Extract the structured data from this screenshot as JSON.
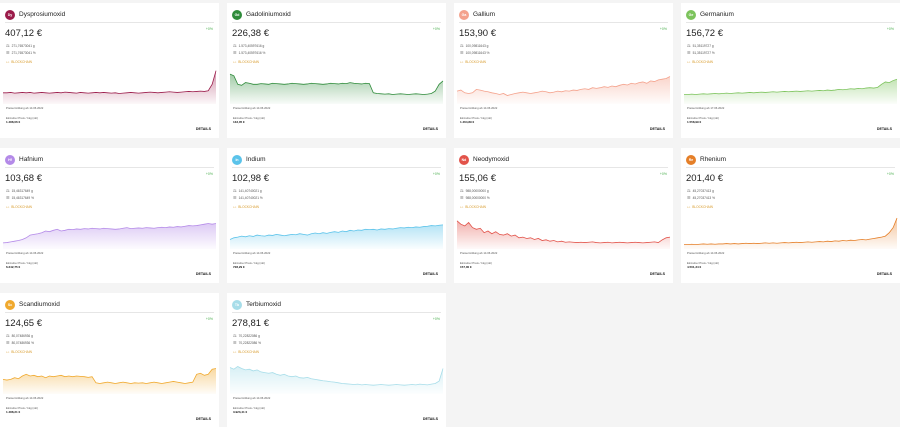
{
  "cards": [
    {
      "name": "Dysprosiumoxid",
      "badge": "Dy",
      "color": "#9b1b4a",
      "price": "407,12 €",
      "change": "+0%",
      "qty_g": "271,76573041 g",
      "qty_pct": "271,76573041 %",
      "chain": "BLOCKCHAIN",
      "note": "Preisermittlung ab 14.06.2022",
      "label": "Einzelner Preis / 1kg (xkt)",
      "total": "1.488,06 €",
      "details": "DETAILS",
      "series": [
        0.3,
        0.3,
        0.31,
        0.29,
        0.3,
        0.31,
        0.3,
        0.31,
        0.29,
        0.3,
        0.31,
        0.3,
        0.29,
        0.3,
        0.31,
        0.3,
        0.32,
        0.31,
        0.3,
        0.29,
        0.31,
        0.3,
        0.29,
        0.3,
        0.31,
        0.3,
        0.31,
        0.3,
        0.29,
        0.3,
        0.28,
        0.29,
        0.3,
        0.31,
        0.3,
        0.29,
        0.3,
        0.31,
        0.32,
        0.31,
        0.3,
        0.31,
        0.32,
        0.33,
        0.32,
        0.31,
        0.32,
        0.33,
        0.34,
        0.33,
        0.34,
        0.35,
        0.34,
        0.36,
        0.55,
        0.95
      ]
    },
    {
      "name": "Gadoliniumoxid",
      "badge": "Gd",
      "color": "#2e8b3a",
      "price": "226,38 €",
      "change": "+0%",
      "qty_g": "1.573,40597616 g",
      "qty_pct": "1.573,40597616 %",
      "chain": "BLOCKCHAIN",
      "note": "Preisermittlung ab 14.06.2022",
      "label": "Einzelner Preis / 1kg (xkt)",
      "total": "133,05 €",
      "details": "DETAILS",
      "series": [
        0.85,
        0.8,
        0.55,
        0.52,
        0.6,
        0.58,
        0.55,
        0.55,
        0.57,
        0.56,
        0.55,
        0.58,
        0.57,
        0.56,
        0.55,
        0.56,
        0.58,
        0.57,
        0.56,
        0.55,
        0.56,
        0.58,
        0.57,
        0.56,
        0.55,
        0.56,
        0.58,
        0.57,
        0.56,
        0.58,
        0.57,
        0.6,
        0.58,
        0.57,
        0.56,
        0.58,
        0.57,
        0.3,
        0.28,
        0.27,
        0.26,
        0.27,
        0.25,
        0.26,
        0.27,
        0.26,
        0.25,
        0.26,
        0.27,
        0.26,
        0.25,
        0.26,
        0.28,
        0.35,
        0.55,
        0.65
      ]
    },
    {
      "name": "Gallium",
      "badge": "Ga",
      "color": "#f4a28c",
      "price": "153,90 €",
      "change": "+0%",
      "qty_g": "100,09811643 g",
      "qty_pct": "100,09811643 %",
      "chain": "BLOCKCHAIN",
      "note": "Preisermittlung ab 14.06.2022",
      "label": "Einzelner Preis / 1kg (xkt)",
      "total": "1.464,89 €",
      "details": "DETAILS",
      "series": [
        0.35,
        0.38,
        0.3,
        0.28,
        0.3,
        0.4,
        0.38,
        0.35,
        0.33,
        0.3,
        0.28,
        0.25,
        0.28,
        0.22,
        0.25,
        0.28,
        0.3,
        0.32,
        0.3,
        0.28,
        0.3,
        0.32,
        0.35,
        0.33,
        0.3,
        0.32,
        0.35,
        0.33,
        0.36,
        0.35,
        0.38,
        0.37,
        0.4,
        0.42,
        0.4,
        0.45,
        0.43,
        0.45,
        0.48,
        0.46,
        0.5,
        0.48,
        0.52,
        0.55,
        0.53,
        0.58,
        0.56,
        0.6,
        0.62,
        0.58,
        0.65,
        0.63,
        0.68,
        0.7,
        0.72,
        0.78
      ]
    },
    {
      "name": "Germanium",
      "badge": "Ge",
      "color": "#7cc35c",
      "price": "156,72 €",
      "change": "+0%",
      "qty_g": "51,35119727 g",
      "qty_pct": "51,35119727 %",
      "chain": "BLOCKCHAIN",
      "note": "Preisermittlung ab 17.06.2022",
      "label": "Einzelner Preis / 1kg (xkt)",
      "total": "1.558,99 €",
      "details": "DETAILS",
      "series": [
        0.25,
        0.25,
        0.26,
        0.25,
        0.26,
        0.27,
        0.26,
        0.27,
        0.28,
        0.27,
        0.28,
        0.29,
        0.28,
        0.29,
        0.3,
        0.29,
        0.3,
        0.31,
        0.3,
        0.31,
        0.32,
        0.31,
        0.32,
        0.33,
        0.32,
        0.33,
        0.34,
        0.33,
        0.34,
        0.35,
        0.34,
        0.35,
        0.36,
        0.35,
        0.36,
        0.37,
        0.36,
        0.38,
        0.37,
        0.38,
        0.4,
        0.39,
        0.4,
        0.42,
        0.41,
        0.43,
        0.42,
        0.44,
        0.45,
        0.44,
        0.46,
        0.55,
        0.62,
        0.6,
        0.66,
        0.7
      ]
    },
    {
      "name": "Hafnium",
      "badge": "Hf",
      "color": "#b48ae8",
      "price": "103,68 €",
      "change": "+0%",
      "qty_g": "15,46317649 g",
      "qty_pct": "15,46317649 %",
      "chain": "BLOCKCHAIN",
      "note": "Preisermittlung ab 14.06.2022",
      "label": "Einzelner Preis / 1kg (xkt)",
      "total": "6.242,75 €",
      "details": "DETAILS",
      "series": [
        0.15,
        0.16,
        0.18,
        0.2,
        0.22,
        0.25,
        0.3,
        0.38,
        0.4,
        0.42,
        0.45,
        0.5,
        0.48,
        0.52,
        0.55,
        0.5,
        0.52,
        0.55,
        0.54,
        0.56,
        0.55,
        0.57,
        0.56,
        0.58,
        0.57,
        0.56,
        0.58,
        0.57,
        0.56,
        0.55,
        0.56,
        0.58,
        0.6,
        0.57,
        0.58,
        0.59,
        0.58,
        0.6,
        0.59,
        0.58,
        0.6,
        0.61,
        0.6,
        0.62,
        0.61,
        0.63,
        0.62,
        0.64,
        0.66,
        0.65,
        0.66,
        0.68,
        0.7,
        0.72,
        0.7,
        0.72
      ]
    },
    {
      "name": "Indium",
      "badge": "In",
      "color": "#5bc3ea",
      "price": "102,98 €",
      "change": "+0%",
      "qty_g": "141,40740021 g",
      "qty_pct": "141,40740021 %",
      "chain": "BLOCKCHAIN",
      "note": "Preisermittlung ab 14.06.2022",
      "label": "Einzelner Preis / 1kg (xkt)",
      "total": "728,29 €",
      "details": "DETAILS",
      "series": [
        0.25,
        0.3,
        0.32,
        0.35,
        0.33,
        0.36,
        0.34,
        0.38,
        0.36,
        0.35,
        0.38,
        0.37,
        0.4,
        0.38,
        0.36,
        0.38,
        0.4,
        0.39,
        0.42,
        0.4,
        0.38,
        0.42,
        0.44,
        0.42,
        0.45,
        0.43,
        0.46,
        0.48,
        0.46,
        0.5,
        0.48,
        0.52,
        0.5,
        0.53,
        0.52,
        0.55,
        0.54,
        0.55,
        0.53,
        0.56,
        0.55,
        0.57,
        0.56,
        0.58,
        0.6,
        0.59,
        0.61,
        0.6,
        0.62,
        0.61,
        0.63,
        0.64,
        0.66,
        0.65,
        0.67,
        0.68
      ]
    },
    {
      "name": "Neodymoxid",
      "badge": "Nd",
      "color": "#e2534a",
      "price": "155,06 €",
      "change": "+0%",
      "qty_g": "988,00000000 g",
      "qty_pct": "988,00000000 %",
      "chain": "BLOCKCHAIN",
      "note": "Preisermittlung ab 14.06.2022",
      "label": "Einzelner Preis / 1kg (xkt)",
      "total": "157,00 €",
      "details": "DETAILS",
      "series": [
        0.8,
        0.7,
        0.65,
        0.75,
        0.6,
        0.55,
        0.58,
        0.45,
        0.5,
        0.42,
        0.48,
        0.4,
        0.38,
        0.42,
        0.35,
        0.38,
        0.3,
        0.32,
        0.28,
        0.3,
        0.25,
        0.28,
        0.22,
        0.24,
        0.2,
        0.22,
        0.18,
        0.2,
        0.17,
        0.18,
        0.17,
        0.16,
        0.17,
        0.16,
        0.17,
        0.18,
        0.16,
        0.15,
        0.16,
        0.17,
        0.15,
        0.16,
        0.17,
        0.16,
        0.15,
        0.16,
        0.17,
        0.16,
        0.15,
        0.16,
        0.17,
        0.18,
        0.16,
        0.24,
        0.3,
        0.32
      ]
    },
    {
      "name": "Rhenium",
      "badge": "Re",
      "color": "#e57f28",
      "price": "201,40 €",
      "change": "+0%",
      "qty_g": "45,27037413 g",
      "qty_pct": "45,27037413 %",
      "chain": "BLOCKCHAIN",
      "note": "Preisermittlung ab 14.06.2022",
      "label": "Einzelner Preis / 1kg (xkt)",
      "total": "4.501,34 €",
      "details": "DETAILS",
      "series": [
        0.1,
        0.1,
        0.11,
        0.1,
        0.11,
        0.12,
        0.11,
        0.12,
        0.11,
        0.12,
        0.12,
        0.13,
        0.12,
        0.13,
        0.12,
        0.13,
        0.14,
        0.13,
        0.14,
        0.13,
        0.14,
        0.15,
        0.14,
        0.15,
        0.14,
        0.15,
        0.16,
        0.15,
        0.16,
        0.17,
        0.16,
        0.17,
        0.18,
        0.17,
        0.18,
        0.19,
        0.18,
        0.2,
        0.19,
        0.21,
        0.2,
        0.22,
        0.21,
        0.23,
        0.22,
        0.24,
        0.25,
        0.24,
        0.26,
        0.28,
        0.3,
        0.32,
        0.35,
        0.45,
        0.6,
        0.88
      ]
    },
    {
      "name": "Scandiumoxid",
      "badge": "Sc",
      "color": "#f0a92e",
      "price": "124,65 €",
      "change": "+0%",
      "qty_g": "80,07486936 g",
      "qty_pct": "80,07486936 %",
      "chain": "BLOCKCHAIN",
      "note": "Preisermittlung ab 14.06.2022",
      "label": "Einzelner Preis / 1kg (xkt)",
      "total": "1.488,21 €",
      "details": "DETAILS",
      "series": [
        0.4,
        0.38,
        0.4,
        0.45,
        0.42,
        0.5,
        0.55,
        0.5,
        0.52,
        0.48,
        0.5,
        0.45,
        0.5,
        0.48,
        0.5,
        0.52,
        0.48,
        0.5,
        0.48,
        0.5,
        0.49,
        0.48,
        0.46,
        0.48,
        0.3,
        0.28,
        0.3,
        0.32,
        0.3,
        0.28,
        0.3,
        0.32,
        0.3,
        0.28,
        0.3,
        0.29,
        0.3,
        0.28,
        0.3,
        0.32,
        0.3,
        0.28,
        0.3,
        0.32,
        0.34,
        0.32,
        0.3,
        0.28,
        0.3,
        0.32,
        0.55,
        0.58,
        0.52,
        0.55,
        0.7,
        0.72
      ]
    },
    {
      "name": "Terbiumoxid",
      "badge": "Tb",
      "color": "#a7dde9",
      "price": "278,81 €",
      "change": "+0%",
      "qty_g": "70,22822086 g",
      "qty_pct": "70,22822086 %",
      "chain": "BLOCKCHAIN",
      "note": "Preisermittlung ab 14.06.2022",
      "label": "Einzelner Preis / 1kg (xkt)",
      "total": "3.923,41 €",
      "details": "DETAILS",
      "series": [
        0.75,
        0.7,
        0.78,
        0.72,
        0.68,
        0.7,
        0.65,
        0.68,
        0.62,
        0.6,
        0.58,
        0.6,
        0.55,
        0.52,
        0.55,
        0.5,
        0.48,
        0.5,
        0.45,
        0.44,
        0.46,
        0.42,
        0.4,
        0.38,
        0.36,
        0.35,
        0.33,
        0.32,
        0.3,
        0.28,
        0.27,
        0.26,
        0.25,
        0.26,
        0.24,
        0.25,
        0.24,
        0.23,
        0.24,
        0.25,
        0.24,
        0.23,
        0.24,
        0.25,
        0.24,
        0.23,
        0.24,
        0.25,
        0.24,
        0.26,
        0.25,
        0.24,
        0.26,
        0.28,
        0.35,
        0.72
      ]
    }
  ]
}
